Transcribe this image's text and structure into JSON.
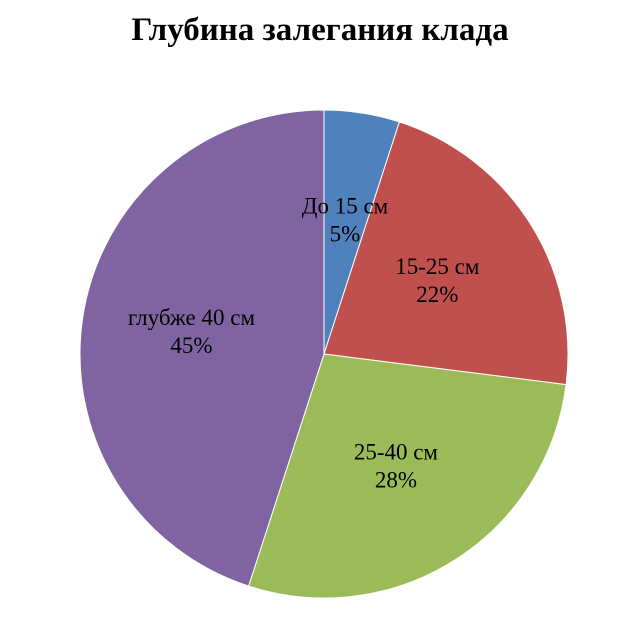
{
  "chart_data": {
    "type": "pie",
    "title": "Глубина залегания клада",
    "start_angle_deg": 0,
    "direction": "clockwise",
    "slices": [
      {
        "label": "До 15 см",
        "value": 5,
        "value_label": "5%",
        "color": "#4F81BD"
      },
      {
        "label": "15-25 см",
        "value": 22,
        "value_label": "22%",
        "color": "#C0504D"
      },
      {
        "label": "25-40 см",
        "value": 28,
        "value_label": "28%",
        "color": "#9BBB59"
      },
      {
        "label": "глубже 40 см",
        "value": 45,
        "value_label": "45%",
        "color": "#8064A2"
      }
    ]
  }
}
